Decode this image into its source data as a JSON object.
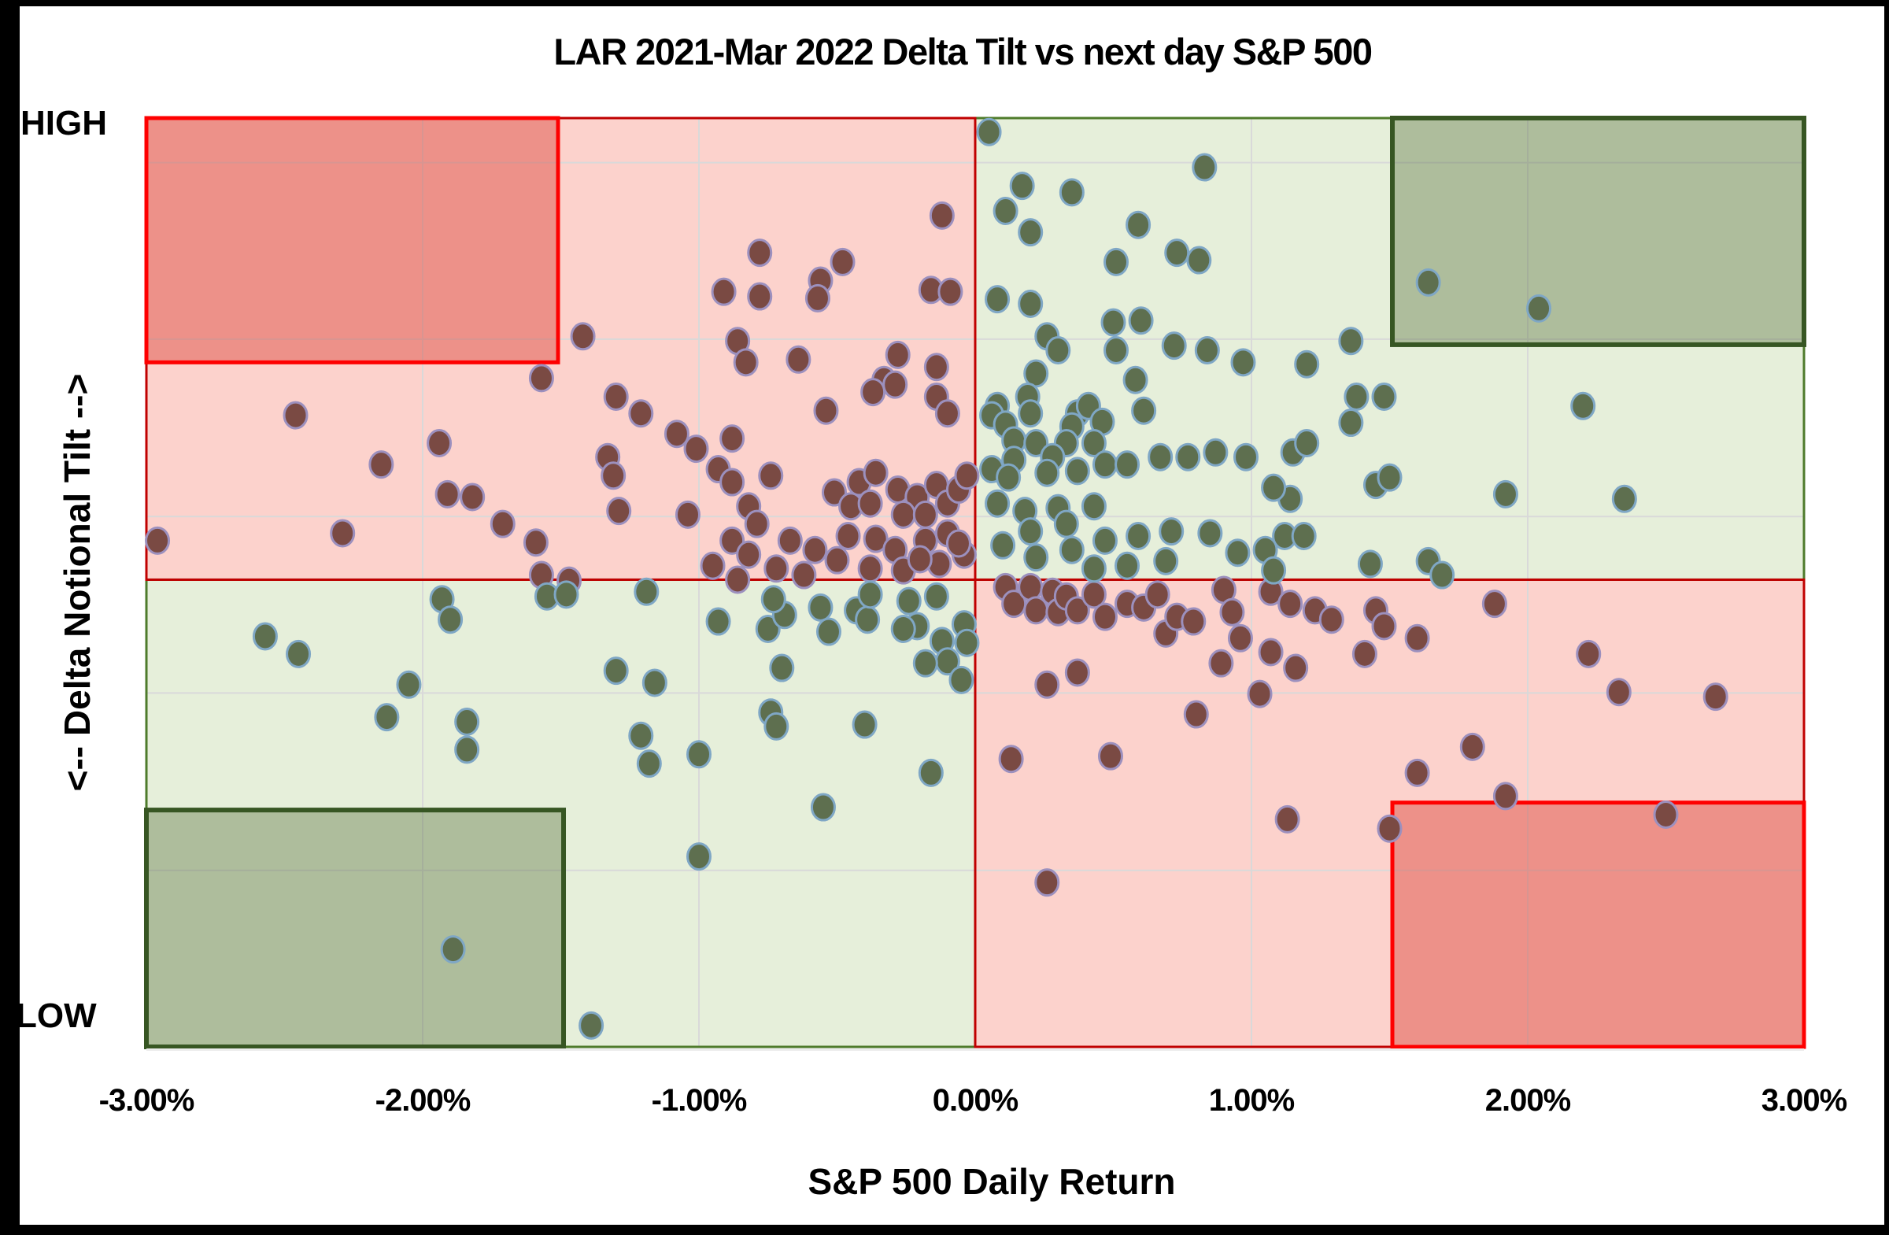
{
  "title": "LAR 2021-Mar 2022 Delta Tilt vs next day S&P 500",
  "axes": {
    "x_title": "S&P 500 Daily Return",
    "y_title": "<-- Delta Notional Tilt -->",
    "y_high": "HIGH",
    "y_low": "LOW"
  },
  "chart_data": {
    "type": "scatter",
    "title": "LAR 2021-Mar 2022 Delta Tilt vs next day S&P 500",
    "xlabel": "S&P 500 Daily Return",
    "ylabel": "<-- Delta Notional Tilt -->",
    "xlim": [
      -3,
      3
    ],
    "ylim": [
      0,
      1
    ],
    "x_tick_values": [
      -3,
      -2,
      -1,
      0,
      1,
      2,
      3
    ],
    "x_tick_labels": [
      "-3.00%",
      "-2.00%",
      "-1.00%",
      "0.00%",
      "1.00%",
      "2.00%",
      "3.00%"
    ],
    "y_axis_annotations": {
      "top": "HIGH",
      "bottom": "LOW"
    },
    "grid": true,
    "legend": false,
    "gridlines": {
      "color": "#D9D9D9",
      "x_values": [
        -2,
        -1,
        1,
        2
      ],
      "y_values": [
        0.19,
        0.381,
        0.571,
        0.762,
        0.952
      ]
    },
    "quadrants": [
      {
        "name": "upper-left",
        "x": [
          -3,
          0
        ],
        "y": [
          0.503,
          1
        ],
        "fill": "#FCD2CC",
        "stroke": "#C00000",
        "border_priority": 1
      },
      {
        "name": "upper-right",
        "x": [
          0,
          3
        ],
        "y": [
          0.503,
          1
        ],
        "fill": "#E6EFDA",
        "stroke": "#4E7B2B",
        "border_priority": 0
      },
      {
        "name": "lower-left",
        "x": [
          -3,
          0
        ],
        "y": [
          0,
          0.503
        ],
        "fill": "#E6EFDA",
        "stroke": "#4E7B2B",
        "border_priority": 0
      },
      {
        "name": "lower-right",
        "x": [
          0,
          3
        ],
        "y": [
          0,
          0.503
        ],
        "fill": "#FCD2CC",
        "stroke": "#C00000",
        "border_priority": 1
      }
    ],
    "corner_boxes": [
      {
        "name": "top-left",
        "x": [
          -3,
          -1.51
        ],
        "y": [
          0.737,
          1
        ],
        "fill": "rgba(214,48,38,0.40)",
        "stroke": "#FE0000",
        "stroke_width": 5
      },
      {
        "name": "top-right",
        "x": [
          1.51,
          3
        ],
        "y": [
          0.756,
          1
        ],
        "fill": "rgba(68,98,41,0.35)",
        "stroke": "#375623",
        "stroke_width": 6
      },
      {
        "name": "bottom-left",
        "x": [
          -3,
          -1.49
        ],
        "y": [
          0,
          0.255
        ],
        "fill": "rgba(68,98,41,0.35)",
        "stroke": "#375623",
        "stroke_width": 6
      },
      {
        "name": "bottom-right",
        "x": [
          1.51,
          3
        ],
        "y": [
          0,
          0.263
        ],
        "fill": "rgba(214,48,38,0.40)",
        "stroke": "#FE0000",
        "stroke_width": 5
      }
    ],
    "point_style": {
      "rx": 14.5,
      "ry": 16.5,
      "stroke_width": 3
    },
    "series": [
      {
        "name": "red-points",
        "fill": "#7A4A43",
        "stroke": "#9C90BE",
        "points": [
          [
            -1.42,
            0.765
          ],
          [
            -1.57,
            0.72
          ],
          [
            -1.3,
            0.7
          ],
          [
            -1.21,
            0.682
          ],
          [
            -2.46,
            0.68
          ],
          [
            -1.08,
            0.66
          ],
          [
            -1.01,
            0.644
          ],
          [
            -1.33,
            0.635
          ],
          [
            -1.31,
            0.615
          ],
          [
            -2.15,
            0.627
          ],
          [
            -1.94,
            0.65
          ],
          [
            -1.91,
            0.595
          ],
          [
            -1.82,
            0.592
          ],
          [
            -1.71,
            0.563
          ],
          [
            -1.59,
            0.543
          ],
          [
            -1.29,
            0.577
          ],
          [
            -1.04,
            0.573
          ],
          [
            -2.29,
            0.553
          ],
          [
            -2.96,
            0.545
          ],
          [
            -1.57,
            0.508
          ],
          [
            -1.47,
            0.502
          ],
          [
            -0.12,
            0.895
          ],
          [
            -0.78,
            0.855
          ],
          [
            -0.91,
            0.813
          ],
          [
            -0.78,
            0.808
          ],
          [
            -0.56,
            0.825
          ],
          [
            -0.48,
            0.845
          ],
          [
            -0.57,
            0.806
          ],
          [
            -0.16,
            0.815
          ],
          [
            -0.09,
            0.813
          ],
          [
            -0.86,
            0.76
          ],
          [
            -0.83,
            0.737
          ],
          [
            -0.64,
            0.74
          ],
          [
            -0.28,
            0.745
          ],
          [
            -0.14,
            0.732
          ],
          [
            -0.33,
            0.718
          ],
          [
            -0.37,
            0.705
          ],
          [
            -0.29,
            0.713
          ],
          [
            -0.54,
            0.685
          ],
          [
            -0.14,
            0.7
          ],
          [
            -0.1,
            0.682
          ],
          [
            -0.88,
            0.655
          ],
          [
            -0.93,
            0.622
          ],
          [
            -0.88,
            0.608
          ],
          [
            -0.74,
            0.615
          ],
          [
            -0.82,
            0.582
          ],
          [
            -0.79,
            0.563
          ],
          [
            -0.88,
            0.545
          ],
          [
            -0.82,
            0.53
          ],
          [
            -0.95,
            0.518
          ],
          [
            -0.51,
            0.597
          ],
          [
            -0.42,
            0.608
          ],
          [
            -0.36,
            0.618
          ],
          [
            -0.45,
            0.582
          ],
          [
            -0.38,
            0.585
          ],
          [
            -0.28,
            0.6
          ],
          [
            -0.21,
            0.592
          ],
          [
            -0.14,
            0.605
          ],
          [
            -0.26,
            0.573
          ],
          [
            -0.18,
            0.573
          ],
          [
            -0.1,
            0.585
          ],
          [
            -0.06,
            0.6
          ],
          [
            -0.03,
            0.615
          ],
          [
            -0.67,
            0.545
          ],
          [
            -0.58,
            0.535
          ],
          [
            -0.46,
            0.55
          ],
          [
            -0.36,
            0.547
          ],
          [
            -0.29,
            0.535
          ],
          [
            -0.18,
            0.545
          ],
          [
            -0.1,
            0.553
          ],
          [
            -0.38,
            0.515
          ],
          [
            -0.26,
            0.513
          ],
          [
            -0.13,
            0.52
          ],
          [
            -0.04,
            0.53
          ],
          [
            -0.72,
            0.515
          ],
          [
            -0.86,
            0.503
          ],
          [
            -0.62,
            0.508
          ],
          [
            -0.5,
            0.524
          ],
          [
            -0.2,
            0.525
          ],
          [
            -0.06,
            0.542
          ],
          [
            0.11,
            0.495
          ],
          [
            0.14,
            0.477
          ],
          [
            0.2,
            0.495
          ],
          [
            0.22,
            0.47
          ],
          [
            0.28,
            0.49
          ],
          [
            0.3,
            0.468
          ],
          [
            0.33,
            0.485
          ],
          [
            0.37,
            0.47
          ],
          [
            0.43,
            0.487
          ],
          [
            0.47,
            0.463
          ],
          [
            0.55,
            0.477
          ],
          [
            0.61,
            0.473
          ],
          [
            0.66,
            0.487
          ],
          [
            0.69,
            0.445
          ],
          [
            0.73,
            0.463
          ],
          [
            0.79,
            0.458
          ],
          [
            0.9,
            0.492
          ],
          [
            0.93,
            0.468
          ],
          [
            0.96,
            0.44
          ],
          [
            0.89,
            0.413
          ],
          [
            0.26,
            0.39
          ],
          [
            0.37,
            0.403
          ],
          [
            0.8,
            0.358
          ],
          [
            0.13,
            0.31
          ],
          [
            0.49,
            0.313
          ],
          [
            0.26,
            0.177
          ],
          [
            1.07,
            0.49
          ],
          [
            1.14,
            0.477
          ],
          [
            1.23,
            0.47
          ],
          [
            1.29,
            0.46
          ],
          [
            1.45,
            0.47
          ],
          [
            1.48,
            0.453
          ],
          [
            1.41,
            0.423
          ],
          [
            1.07,
            0.425
          ],
          [
            1.16,
            0.408
          ],
          [
            1.03,
            0.38
          ],
          [
            1.6,
            0.44
          ],
          [
            1.88,
            0.477
          ],
          [
            2.22,
            0.423
          ],
          [
            2.33,
            0.382
          ],
          [
            2.68,
            0.377
          ],
          [
            1.8,
            0.323
          ],
          [
            1.6,
            0.295
          ],
          [
            1.92,
            0.27
          ],
          [
            1.13,
            0.245
          ],
          [
            1.5,
            0.235
          ],
          [
            2.5,
            0.25
          ]
        ]
      },
      {
        "name": "green-points",
        "fill": "#5E6F4F",
        "stroke": "#7FA7C5",
        "points": [
          [
            0.17,
            0.927
          ],
          [
            0.35,
            0.92
          ],
          [
            0.11,
            0.9
          ],
          [
            0.2,
            0.877
          ],
          [
            0.83,
            0.947
          ],
          [
            0.59,
            0.885
          ],
          [
            0.51,
            0.845
          ],
          [
            0.73,
            0.855
          ],
          [
            0.81,
            0.847
          ],
          [
            0.08,
            0.805
          ],
          [
            0.2,
            0.8
          ],
          [
            0.5,
            0.78
          ],
          [
            0.6,
            0.782
          ],
          [
            0.26,
            0.765
          ],
          [
            0.3,
            0.75
          ],
          [
            0.51,
            0.75
          ],
          [
            0.72,
            0.755
          ],
          [
            0.84,
            0.75
          ],
          [
            0.97,
            0.737
          ],
          [
            0.22,
            0.725
          ],
          [
            0.58,
            0.718
          ],
          [
            0.61,
            0.685
          ],
          [
            0.19,
            0.7
          ],
          [
            0.2,
            0.682
          ],
          [
            0.08,
            0.69
          ],
          [
            0.06,
            0.68
          ],
          [
            0.37,
            0.682
          ],
          [
            0.41,
            0.69
          ],
          [
            0.35,
            0.668
          ],
          [
            0.46,
            0.673
          ],
          [
            0.11,
            0.67
          ],
          [
            0.14,
            0.653
          ],
          [
            0.22,
            0.65
          ],
          [
            0.33,
            0.65
          ],
          [
            0.43,
            0.65
          ],
          [
            0.28,
            0.635
          ],
          [
            0.14,
            0.632
          ],
          [
            0.06,
            0.622
          ],
          [
            0.12,
            0.613
          ],
          [
            0.26,
            0.618
          ],
          [
            0.37,
            0.62
          ],
          [
            0.47,
            0.627
          ],
          [
            0.55,
            0.627
          ],
          [
            0.67,
            0.635
          ],
          [
            0.77,
            0.635
          ],
          [
            0.87,
            0.64
          ],
          [
            0.98,
            0.635
          ],
          [
            0.08,
            0.585
          ],
          [
            0.18,
            0.577
          ],
          [
            0.3,
            0.58
          ],
          [
            0.43,
            0.582
          ],
          [
            0.33,
            0.563
          ],
          [
            0.2,
            0.555
          ],
          [
            0.1,
            0.54
          ],
          [
            0.22,
            0.527
          ],
          [
            0.35,
            0.535
          ],
          [
            0.47,
            0.545
          ],
          [
            0.59,
            0.55
          ],
          [
            0.71,
            0.555
          ],
          [
            0.85,
            0.553
          ],
          [
            0.95,
            0.532
          ],
          [
            0.43,
            0.515
          ],
          [
            0.55,
            0.518
          ],
          [
            0.69,
            0.523
          ],
          [
            1.64,
            0.823
          ],
          [
            2.04,
            0.795
          ],
          [
            1.36,
            0.76
          ],
          [
            1.2,
            0.735
          ],
          [
            1.38,
            0.7
          ],
          [
            1.48,
            0.7
          ],
          [
            1.36,
            0.672
          ],
          [
            1.15,
            0.64
          ],
          [
            1.2,
            0.65
          ],
          [
            2.2,
            0.69
          ],
          [
            1.45,
            0.605
          ],
          [
            1.5,
            0.613
          ],
          [
            1.14,
            0.59
          ],
          [
            1.08,
            0.602
          ],
          [
            1.92,
            0.595
          ],
          [
            2.35,
            0.59
          ],
          [
            1.12,
            0.55
          ],
          [
            1.19,
            0.55
          ],
          [
            1.05,
            0.535
          ],
          [
            1.08,
            0.513
          ],
          [
            1.43,
            0.52
          ],
          [
            1.64,
            0.523
          ],
          [
            1.69,
            0.508
          ],
          [
            0.05,
            0.985
          ],
          [
            -2.57,
            0.442
          ],
          [
            -2.45,
            0.423
          ],
          [
            -1.93,
            0.482
          ],
          [
            -1.9,
            0.46
          ],
          [
            -1.55,
            0.485
          ],
          [
            -1.48,
            0.487
          ],
          [
            -1.19,
            0.49
          ],
          [
            -2.05,
            0.39
          ],
          [
            -2.13,
            0.355
          ],
          [
            -1.84,
            0.35
          ],
          [
            -1.84,
            0.32
          ],
          [
            -1.3,
            0.405
          ],
          [
            -1.16,
            0.392
          ],
          [
            -1.21,
            0.335
          ],
          [
            -1.18,
            0.305
          ],
          [
            -1.0,
            0.315
          ],
          [
            -1.0,
            0.205
          ],
          [
            -1.89,
            0.105
          ],
          [
            -1.39,
            0.023
          ],
          [
            -0.93,
            0.458
          ],
          [
            -0.75,
            0.45
          ],
          [
            -0.69,
            0.465
          ],
          [
            -0.73,
            0.482
          ],
          [
            -0.56,
            0.473
          ],
          [
            -0.53,
            0.447
          ],
          [
            -0.43,
            0.47
          ],
          [
            -0.39,
            0.46
          ],
          [
            -0.38,
            0.487
          ],
          [
            -0.24,
            0.48
          ],
          [
            -0.14,
            0.485
          ],
          [
            -0.21,
            0.453
          ],
          [
            -0.26,
            0.45
          ],
          [
            -0.04,
            0.455
          ],
          [
            -0.03,
            0.435
          ],
          [
            -0.12,
            0.437
          ],
          [
            -0.1,
            0.415
          ],
          [
            -0.18,
            0.413
          ],
          [
            -0.05,
            0.395
          ],
          [
            -0.7,
            0.408
          ],
          [
            -0.74,
            0.36
          ],
          [
            -0.72,
            0.345
          ],
          [
            -0.4,
            0.347
          ],
          [
            -0.16,
            0.295
          ],
          [
            -0.55,
            0.258
          ]
        ]
      }
    ]
  }
}
